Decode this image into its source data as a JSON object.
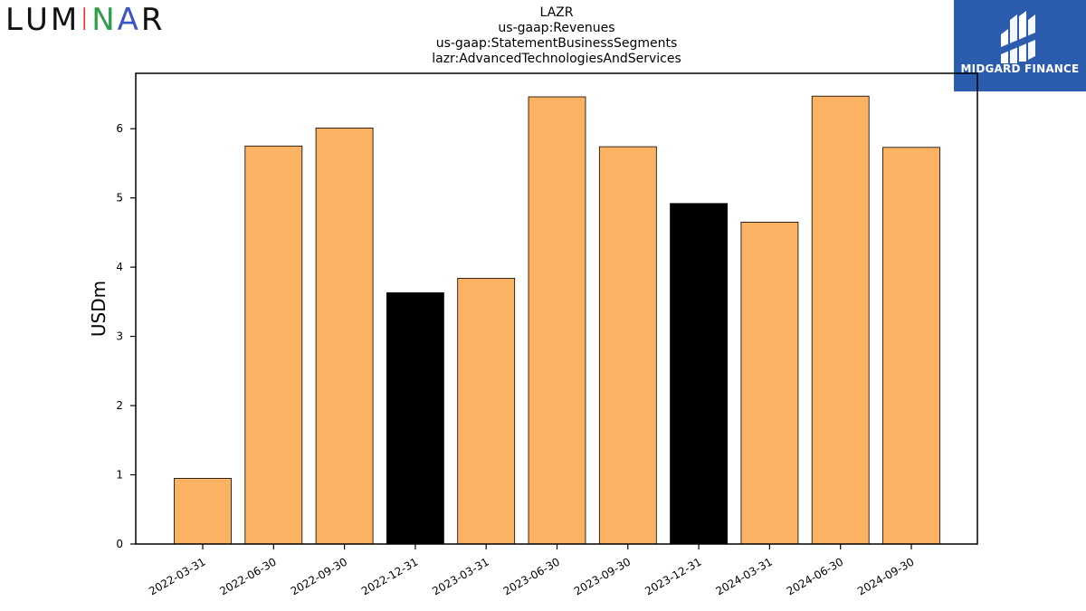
{
  "branding": {
    "left_logo_text": [
      "L",
      "U",
      "M",
      "I",
      "N",
      "A",
      "R"
    ],
    "left_logo_colors": [
      "#111111",
      "#111111",
      "#111111",
      "#e23a3a",
      "#2e9e4a",
      "#3a55c8",
      "#111111"
    ],
    "right_logo_text": "MIDGARD FINANCE",
    "right_logo_bg": "#2b5cae"
  },
  "chart_data": {
    "type": "bar",
    "title": [
      "LAZR",
      "us-gaap:Revenues",
      "us-gaap:StatementBusinessSegments",
      "lazr:AdvancedTechnologiesAndServices"
    ],
    "xlabel": "",
    "ylabel": "USDm",
    "ylim": [
      0,
      6.8
    ],
    "yticks": [
      0,
      1,
      2,
      3,
      4,
      5,
      6
    ],
    "categories": [
      "2022-03-31",
      "2022-06-30",
      "2022-09-30",
      "2022-12-31",
      "2023-03-31",
      "2023-06-30",
      "2023-09-30",
      "2023-12-31",
      "2024-03-31",
      "2024-06-30",
      "2024-09-30"
    ],
    "values": [
      0.95,
      5.75,
      6.01,
      3.63,
      3.84,
      6.46,
      5.74,
      4.92,
      4.65,
      6.47,
      5.73
    ],
    "bar_colors": [
      "#fbb263",
      "#fbb263",
      "#fbb263",
      "#000000",
      "#fbb263",
      "#fbb263",
      "#fbb263",
      "#000000",
      "#fbb263",
      "#fbb263",
      "#fbb263"
    ],
    "grid": false,
    "legend": "none"
  }
}
